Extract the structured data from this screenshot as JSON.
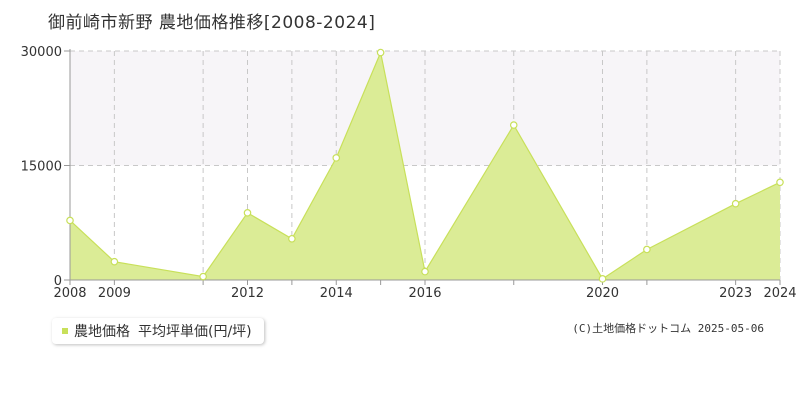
{
  "colors": {
    "fill": "#dbec96",
    "line": "#c8e05a",
    "marker_fill": "#ffffff",
    "upper_band": "#f7f5f8",
    "grid": "#c8c8c8",
    "axis": "#999999"
  },
  "chart_data": {
    "type": "area",
    "title": "御前崎市新野 農地価格推移[2008-2024]",
    "x": [
      2008,
      2009,
      2011,
      2012,
      2013,
      2014,
      2015,
      2016,
      2018,
      2020,
      2021,
      2023,
      2024
    ],
    "x_tick_labels": [
      "2008",
      "2009",
      "2012",
      "2014",
      "2016",
      "2020",
      "2023",
      "2024"
    ],
    "x_tick_values": [
      2008,
      2009,
      2012,
      2014,
      2016,
      2020,
      2023,
      2024
    ],
    "y_ticks": [
      0,
      15000,
      30000
    ],
    "y_tick_labels": [
      "0",
      "15000",
      "30000"
    ],
    "xlim": [
      2008,
      2024
    ],
    "ylim": [
      0,
      30000
    ],
    "series": [
      {
        "name": "農地価格",
        "values": [
          7800,
          2400,
          450,
          8800,
          5400,
          16000,
          29800,
          1100,
          20300,
          150,
          4000,
          10000,
          12800
        ]
      }
    ],
    "grid": true,
    "legend": {
      "position": "bottom-left",
      "series_label": "農地価格",
      "unit_label": "平均坪単価(円/坪)"
    }
  },
  "copyright": "(C)土地価格ドットコム 2025-05-06"
}
